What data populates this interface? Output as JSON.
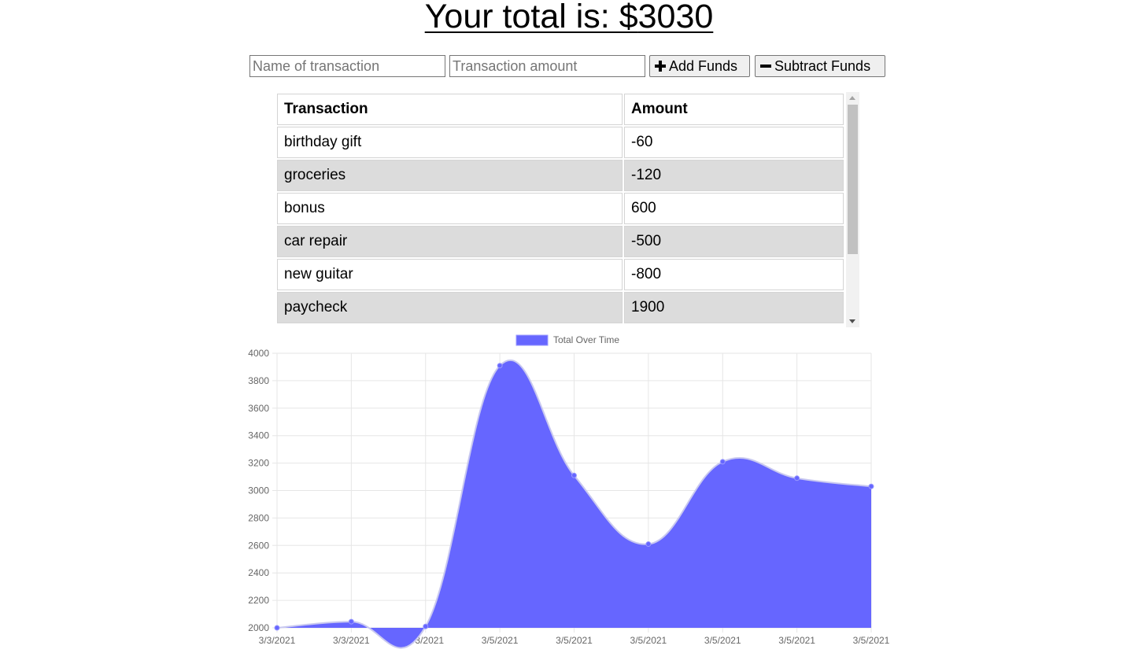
{
  "header": {
    "total_label": "Your total is: $",
    "total_value": "3030"
  },
  "form": {
    "name_placeholder": "Name of transaction",
    "amount_placeholder": "Transaction amount",
    "add_label": "Add Funds",
    "subtract_label": "Subtract Funds"
  },
  "table": {
    "headers": [
      "Transaction",
      "Amount"
    ],
    "rows": [
      {
        "name": "birthday gift",
        "amount": "-60"
      },
      {
        "name": "groceries",
        "amount": "-120"
      },
      {
        "name": "bonus",
        "amount": "600"
      },
      {
        "name": "car repair",
        "amount": "-500"
      },
      {
        "name": "new guitar",
        "amount": "-800"
      },
      {
        "name": "paycheck",
        "amount": "1900"
      }
    ]
  },
  "chart_data": {
    "type": "area",
    "series": [
      {
        "name": "Total Over Time",
        "color": "#6666ff",
        "values": [
          2000,
          2045,
          2010,
          3910,
          3110,
          2610,
          3210,
          3090,
          3030
        ]
      }
    ],
    "categories": [
      "3/3/2021",
      "3/3/2021",
      "3/3/2021",
      "3/5/2021",
      "3/5/2021",
      "3/5/2021",
      "3/5/2021",
      "3/5/2021",
      "3/5/2021"
    ],
    "ylim": [
      2000,
      4000
    ],
    "yticks": [
      2000,
      2200,
      2400,
      2600,
      2800,
      3000,
      3200,
      3400,
      3600,
      3800,
      4000
    ],
    "grid": true,
    "legend": "top"
  }
}
